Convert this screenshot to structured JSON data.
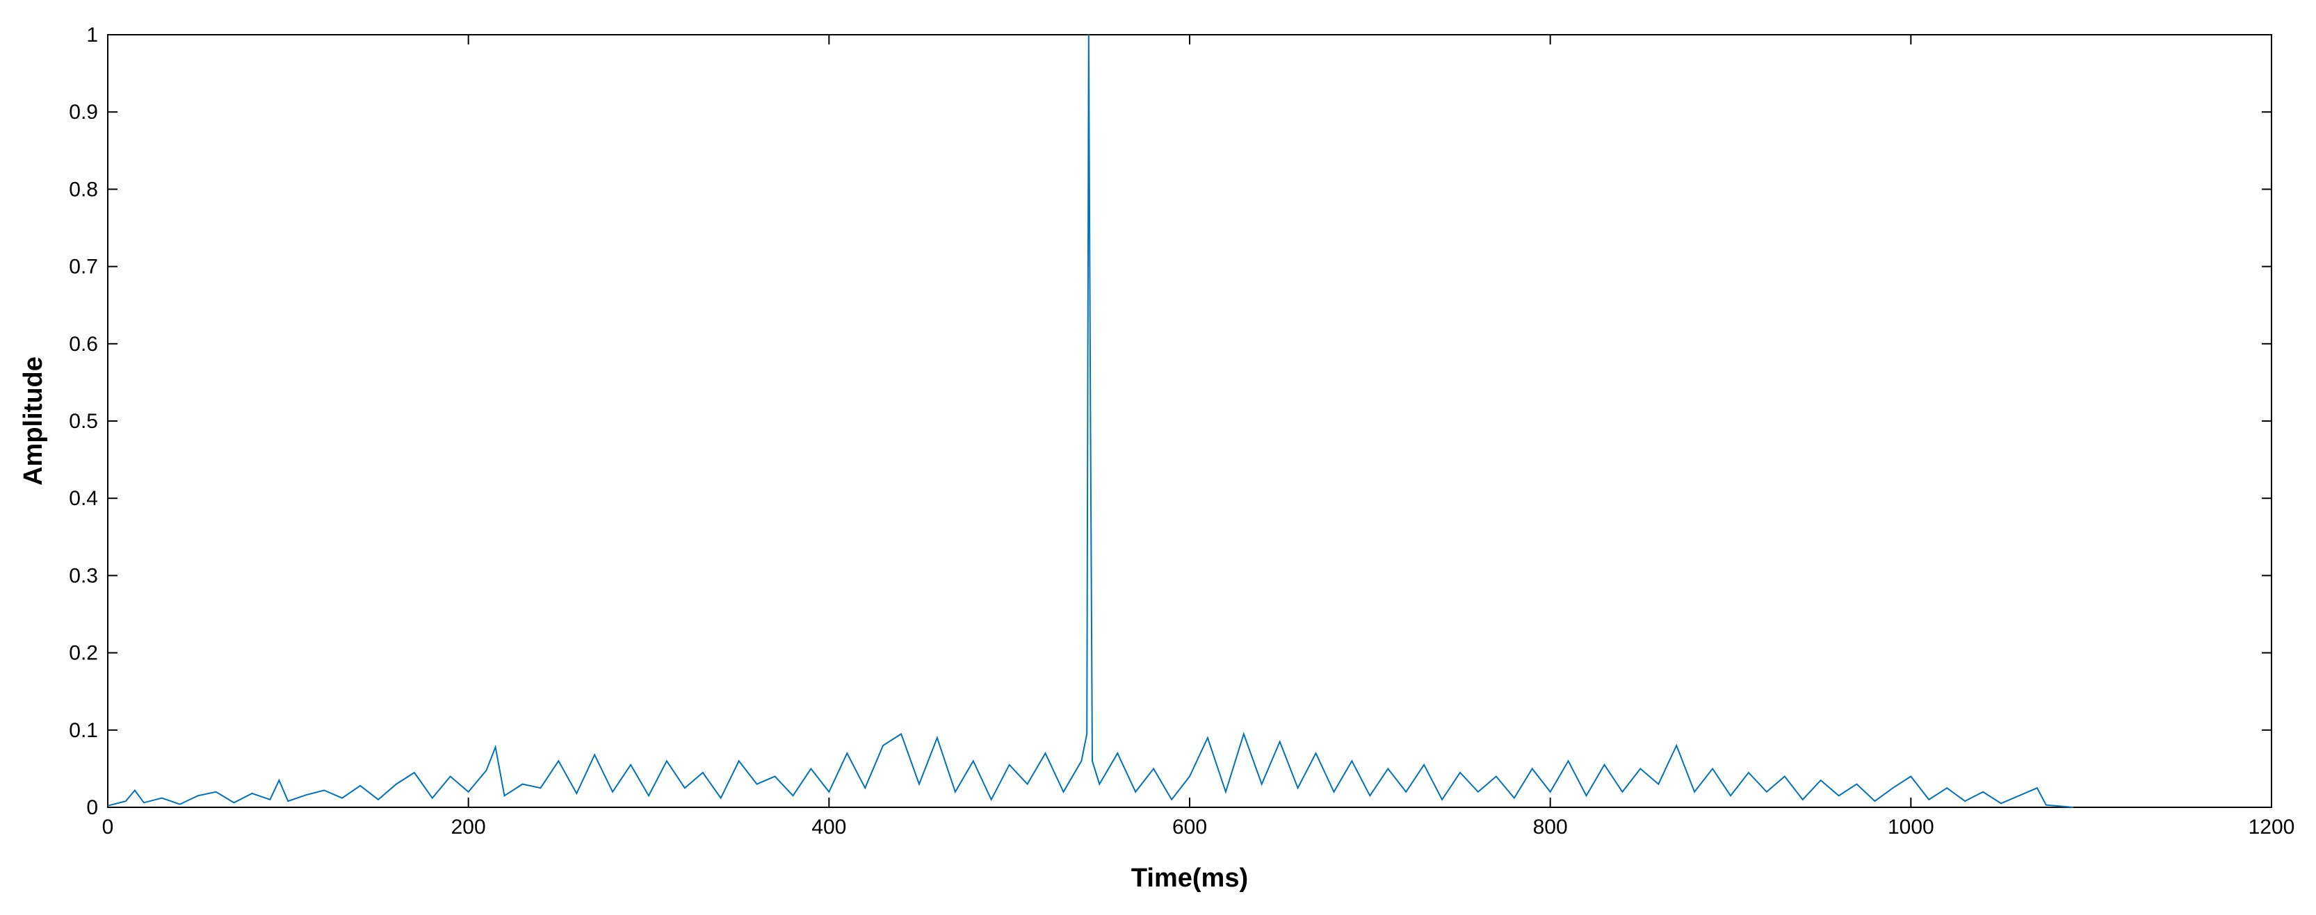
{
  "chart_data": {
    "type": "line",
    "title": "",
    "xlabel": "Time(ms)",
    "ylabel": "Amplitude",
    "xlim": [
      0,
      1200
    ],
    "ylim": [
      0,
      1
    ],
    "x_ticks": [
      0,
      200,
      400,
      600,
      800,
      1000,
      1200
    ],
    "y_ticks": [
      0,
      0.1,
      0.2,
      0.3,
      0.4,
      0.5,
      0.6,
      0.7,
      0.8,
      0.9,
      1
    ],
    "x_tick_labels": [
      "0",
      "200",
      "400",
      "600",
      "800",
      "1000",
      "1200"
    ],
    "y_tick_labels": [
      "0",
      "0.1",
      "0.2",
      "0.3",
      "0.4",
      "0.5",
      "0.6",
      "0.7",
      "0.8",
      "0.9",
      "1"
    ],
    "grid": false,
    "series": [
      {
        "color": "#0072BD",
        "points": [
          [
            0,
            0.002
          ],
          [
            10,
            0.008
          ],
          [
            15,
            0.022
          ],
          [
            20,
            0.006
          ],
          [
            30,
            0.012
          ],
          [
            40,
            0.004
          ],
          [
            50,
            0.015
          ],
          [
            60,
            0.02
          ],
          [
            70,
            0.006
          ],
          [
            80,
            0.018
          ],
          [
            90,
            0.01
          ],
          [
            95,
            0.035
          ],
          [
            100,
            0.008
          ],
          [
            110,
            0.016
          ],
          [
            120,
            0.022
          ],
          [
            130,
            0.012
          ],
          [
            140,
            0.028
          ],
          [
            150,
            0.01
          ],
          [
            160,
            0.03
          ],
          [
            170,
            0.045
          ],
          [
            180,
            0.012
          ],
          [
            190,
            0.04
          ],
          [
            200,
            0.02
          ],
          [
            210,
            0.048
          ],
          [
            215,
            0.078
          ],
          [
            220,
            0.015
          ],
          [
            230,
            0.03
          ],
          [
            240,
            0.025
          ],
          [
            250,
            0.06
          ],
          [
            260,
            0.018
          ],
          [
            270,
            0.068
          ],
          [
            280,
            0.02
          ],
          [
            290,
            0.055
          ],
          [
            300,
            0.015
          ],
          [
            310,
            0.06
          ],
          [
            320,
            0.025
          ],
          [
            330,
            0.045
          ],
          [
            340,
            0.012
          ],
          [
            350,
            0.06
          ],
          [
            360,
            0.03
          ],
          [
            370,
            0.04
          ],
          [
            380,
            0.015
          ],
          [
            390,
            0.05
          ],
          [
            400,
            0.02
          ],
          [
            410,
            0.07
          ],
          [
            420,
            0.025
          ],
          [
            430,
            0.08
          ],
          [
            440,
            0.095
          ],
          [
            450,
            0.03
          ],
          [
            460,
            0.09
          ],
          [
            470,
            0.02
          ],
          [
            480,
            0.06
          ],
          [
            490,
            0.01
          ],
          [
            500,
            0.055
          ],
          [
            510,
            0.03
          ],
          [
            520,
            0.07
          ],
          [
            530,
            0.02
          ],
          [
            540,
            0.06
          ],
          [
            543,
            0.095
          ],
          [
            544,
            1.0
          ],
          [
            545,
            0.5
          ],
          [
            546,
            0.06
          ],
          [
            550,
            0.03
          ],
          [
            560,
            0.07
          ],
          [
            570,
            0.02
          ],
          [
            580,
            0.05
          ],
          [
            590,
            0.01
          ],
          [
            600,
            0.04
          ],
          [
            610,
            0.09
          ],
          [
            620,
            0.02
          ],
          [
            630,
            0.095
          ],
          [
            640,
            0.03
          ],
          [
            650,
            0.085
          ],
          [
            660,
            0.025
          ],
          [
            670,
            0.07
          ],
          [
            680,
            0.02
          ],
          [
            690,
            0.06
          ],
          [
            700,
            0.015
          ],
          [
            710,
            0.05
          ],
          [
            720,
            0.02
          ],
          [
            730,
            0.055
          ],
          [
            740,
            0.01
          ],
          [
            750,
            0.045
          ],
          [
            760,
            0.02
          ],
          [
            770,
            0.04
          ],
          [
            780,
            0.012
          ],
          [
            790,
            0.05
          ],
          [
            800,
            0.02
          ],
          [
            810,
            0.06
          ],
          [
            820,
            0.015
          ],
          [
            830,
            0.055
          ],
          [
            840,
            0.02
          ],
          [
            850,
            0.05
          ],
          [
            860,
            0.03
          ],
          [
            870,
            0.08
          ],
          [
            880,
            0.02
          ],
          [
            890,
            0.05
          ],
          [
            900,
            0.015
          ],
          [
            910,
            0.045
          ],
          [
            920,
            0.02
          ],
          [
            930,
            0.04
          ],
          [
            940,
            0.01
          ],
          [
            950,
            0.035
          ],
          [
            960,
            0.015
          ],
          [
            970,
            0.03
          ],
          [
            980,
            0.008
          ],
          [
            990,
            0.025
          ],
          [
            1000,
            0.04
          ],
          [
            1010,
            0.01
          ],
          [
            1020,
            0.025
          ],
          [
            1030,
            0.008
          ],
          [
            1040,
            0.02
          ],
          [
            1050,
            0.005
          ],
          [
            1060,
            0.015
          ],
          [
            1070,
            0.025
          ],
          [
            1075,
            0.003
          ],
          [
            1080,
            0.002
          ],
          [
            1090,
            0.0
          ]
        ]
      }
    ]
  }
}
